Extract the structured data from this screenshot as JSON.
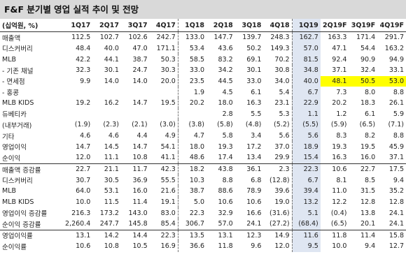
{
  "title": "F&F 분기별 영업 실적 추이 및 전망",
  "header": {
    "label": "(십억원, %)",
    "quarters": [
      "1Q17",
      "2Q17",
      "3Q17",
      "4Q17",
      "1Q18",
      "2Q18",
      "3Q18",
      "4Q18",
      "1Q19",
      "2Q19F",
      "3Q19F",
      "4Q19F"
    ]
  },
  "rows": [
    {
      "label": "매출액",
      "values": [
        "112.5",
        "102.7",
        "102.6",
        "242.7",
        "133.0",
        "147.7",
        "139.7",
        "248.3",
        "162.7",
        "163.3",
        "171.4",
        "291.7"
      ]
    },
    {
      "label": "디스커버리",
      "values": [
        "48.4",
        "40.0",
        "47.0",
        "171.1",
        "53.4",
        "43.6",
        "50.2",
        "149.3",
        "57.0",
        "47.1",
        "54.4",
        "163.2"
      ]
    },
    {
      "label": "MLB",
      "values": [
        "42.2",
        "44.1",
        "38.7",
        "50.3",
        "58.5",
        "83.2",
        "69.1",
        "70.2",
        "81.5",
        "92.4",
        "90.9",
        "94.9"
      ]
    },
    {
      "label": "- 기존 채널",
      "values": [
        "32.3",
        "30.1",
        "24.7",
        "30.3",
        "33.0",
        "34.2",
        "30.1",
        "30.8",
        "34.8",
        "37.1",
        "32.4",
        "33.1"
      ]
    },
    {
      "label": "- 면세점",
      "values": [
        "9.9",
        "14.0",
        "14.0",
        "20.0",
        "23.5",
        "44.5",
        "33.0",
        "34.0",
        "40.0",
        "48.1",
        "50.5",
        "53.0"
      ]
    },
    {
      "label": "- 홍콩",
      "values": [
        "",
        "",
        "",
        "",
        "1.9",
        "4.5",
        "6.1",
        "5.4",
        "6.7",
        "7.3",
        "8.0",
        "8.8"
      ]
    },
    {
      "label": "MLB KIDS",
      "values": [
        "19.2",
        "16.2",
        "14.7",
        "19.5",
        "20.2",
        "18.0",
        "16.3",
        "23.1",
        "22.9",
        "20.2",
        "18.3",
        "26.1"
      ]
    },
    {
      "label": "듀베티카",
      "values": [
        "",
        "",
        "",
        "",
        "",
        "2.8",
        "5.5",
        "5.3",
        "1.1",
        "1.2",
        "6.1",
        "5.9"
      ]
    },
    {
      "label": "(내부거래)",
      "values": [
        "(1.9)",
        "(2.3)",
        "(2.1)",
        "(3.0)",
        "(3.8)",
        "(5.8)",
        "(4.8)",
        "(5.2)",
        "(5.5)",
        "(5.9)",
        "(6.5)",
        "(7.1)"
      ]
    },
    {
      "label": "기타",
      "values": [
        "4.6",
        "4.6",
        "4.4",
        "4.9",
        "4.7",
        "5.8",
        "3.4",
        "5.6",
        "5.6",
        "8.3",
        "8.2",
        "8.8"
      ]
    },
    {
      "label": "영업이익",
      "values": [
        "14.7",
        "14.5",
        "14.7",
        "54.1",
        "18.0",
        "19.3",
        "17.2",
        "37.0",
        "18.9",
        "19.3",
        "19.5",
        "45.9"
      ]
    },
    {
      "label": "순이익",
      "values": [
        "12.0",
        "11.1",
        "10.8",
        "41.1",
        "48.6",
        "17.4",
        "13.4",
        "29.9",
        "15.4",
        "16.3",
        "16.0",
        "37.1"
      ]
    },
    {
      "label": "매출액 증감률",
      "values": [
        "22.7",
        "21.1",
        "11.7",
        "42.3",
        "18.2",
        "43.8",
        "36.1",
        "2.3",
        "22.3",
        "10.6",
        "22.7",
        "17.5"
      ]
    },
    {
      "label": "디스커버리",
      "values": [
        "30.7",
        "30.5",
        "36.9",
        "55.5",
        "10.3",
        "8.8",
        "6.8",
        "(12.8)",
        "6.7",
        "8.1",
        "8.5",
        "9.4"
      ]
    },
    {
      "label": "MLB",
      "values": [
        "64.0",
        "53.1",
        "16.0",
        "21.6",
        "38.7",
        "88.6",
        "78.9",
        "39.6",
        "39.4",
        "11.0",
        "31.5",
        "35.2"
      ]
    },
    {
      "label": "MLB KIDS",
      "values": [
        "10.0",
        "11.5",
        "11.4",
        "19.1",
        "5.0",
        "10.6",
        "10.6",
        "19.0",
        "13.2",
        "12.2",
        "12.8",
        "12.8"
      ]
    },
    {
      "label": "영업이익 증감률",
      "values": [
        "216.3",
        "173.2",
        "143.0",
        "83.0",
        "22.3",
        "32.9",
        "16.6",
        "(31.6)",
        "5.1",
        "(0.4)",
        "13.8",
        "24.1"
      ]
    },
    {
      "label": "순이익 증감률",
      "values": [
        "2,260.4",
        "247.7",
        "145.8",
        "85.4",
        "306.7",
        "57.0",
        "24.1",
        "(27.2)",
        "(68.4)",
        "(6.5)",
        "20.1",
        "24.1"
      ]
    },
    {
      "label": "영업이익률",
      "values": [
        "13.1",
        "14.2",
        "14.4",
        "22.3",
        "13.5",
        "13.1",
        "12.3",
        "14.9",
        "11.6",
        "11.8",
        "11.4",
        "15.8"
      ]
    },
    {
      "label": "순이익률",
      "values": [
        "10.6",
        "10.8",
        "10.5",
        "16.9",
        "36.6",
        "11.8",
        "9.6",
        "12.0",
        "9.5",
        "10.0",
        "9.4",
        "12.7"
      ]
    }
  ],
  "colors": {
    "title_bg": "#d9d9d9",
    "highlight_col": "#dfe6f2",
    "highlight_cells": "#ffff00"
  }
}
